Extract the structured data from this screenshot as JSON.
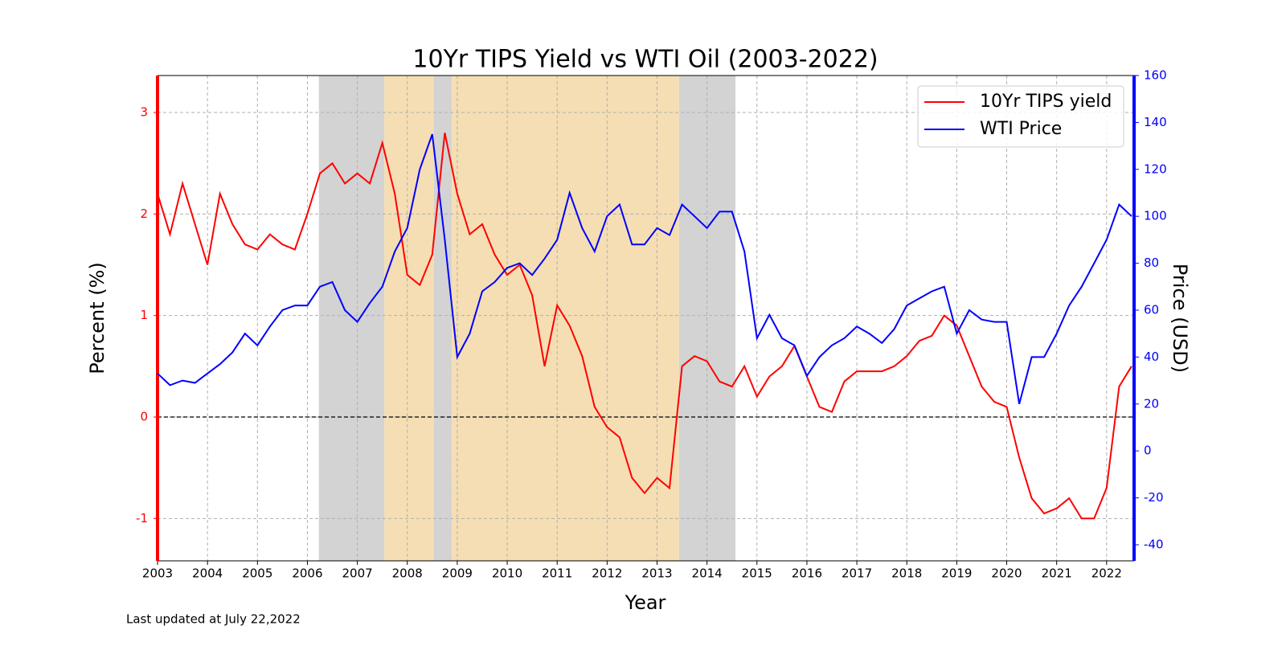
{
  "chart_data": {
    "type": "line",
    "title": "10Yr TIPS Yield vs WTI Oil (2003-2022)",
    "xlabel": "Year",
    "ylabel": "Percent (%)",
    "y2label": "Price (USD)",
    "footnote": "Last updated at July 22,2022",
    "x": [
      2003,
      2003.25,
      2003.5,
      2003.75,
      2004,
      2004.25,
      2004.5,
      2004.75,
      2005,
      2005.25,
      2005.5,
      2005.75,
      2006,
      2006.25,
      2006.5,
      2006.75,
      2007,
      2007.25,
      2007.5,
      2007.75,
      2008,
      2008.25,
      2008.5,
      2008.75,
      2009,
      2009.25,
      2009.5,
      2009.75,
      2010,
      2010.25,
      2010.5,
      2010.75,
      2011,
      2011.25,
      2011.5,
      2011.75,
      2012,
      2012.25,
      2012.5,
      2012.75,
      2013,
      2013.25,
      2013.5,
      2013.75,
      2014,
      2014.25,
      2014.5,
      2014.75,
      2015,
      2015.25,
      2015.5,
      2015.75,
      2016,
      2016.25,
      2016.5,
      2016.75,
      2017,
      2017.25,
      2017.5,
      2017.75,
      2018,
      2018.25,
      2018.5,
      2018.75,
      2019,
      2019.25,
      2019.5,
      2019.75,
      2020,
      2020.25,
      2020.5,
      2020.75,
      2021,
      2021.25,
      2021.5,
      2021.75,
      2022,
      2022.25,
      2022.5
    ],
    "series": [
      {
        "name": "10Yr TIPS yield",
        "color": "#ff0000",
        "axis": "y",
        "values": [
          2.2,
          1.8,
          2.3,
          1.9,
          1.5,
          2.2,
          1.9,
          1.7,
          1.65,
          1.8,
          1.7,
          1.65,
          2.0,
          2.4,
          2.5,
          2.3,
          2.4,
          2.3,
          2.7,
          2.2,
          1.4,
          1.3,
          1.6,
          2.8,
          2.2,
          1.8,
          1.9,
          1.6,
          1.4,
          1.5,
          1.2,
          0.5,
          1.1,
          0.9,
          0.6,
          0.1,
          -0.1,
          -0.2,
          -0.6,
          -0.75,
          -0.6,
          -0.7,
          0.5,
          0.6,
          0.55,
          0.35,
          0.3,
          0.5,
          0.2,
          0.4,
          0.5,
          0.7,
          0.4,
          0.1,
          0.05,
          0.35,
          0.45,
          0.45,
          0.45,
          0.5,
          0.6,
          0.75,
          0.8,
          1.0,
          0.9,
          0.6,
          0.3,
          0.15,
          0.1,
          -0.4,
          -0.8,
          -0.95,
          -0.9,
          -0.8,
          -1.0,
          -1.0,
          -0.7,
          0.3,
          0.5
        ]
      },
      {
        "name": "WTI Price",
        "color": "#0000ff",
        "axis": "y2",
        "values": [
          33,
          28,
          30,
          29,
          33,
          37,
          42,
          50,
          45,
          53,
          60,
          62,
          62,
          70,
          72,
          60,
          55,
          63,
          70,
          85,
          95,
          120,
          135,
          90,
          40,
          50,
          68,
          72,
          78,
          80,
          75,
          82,
          90,
          110,
          95,
          85,
          100,
          105,
          88,
          88,
          95,
          92,
          105,
          100,
          95,
          102,
          102,
          85,
          48,
          58,
          48,
          45,
          32,
          40,
          45,
          48,
          53,
          50,
          46,
          52,
          62,
          65,
          68,
          70,
          50,
          60,
          56,
          55,
          55,
          20,
          40,
          40,
          50,
          62,
          70,
          80,
          90,
          105,
          100
        ]
      }
    ],
    "xlim": [
      2003,
      2022.55
    ],
    "xticks": [
      2003,
      2004,
      2005,
      2006,
      2007,
      2008,
      2009,
      2010,
      2011,
      2012,
      2013,
      2014,
      2015,
      2016,
      2017,
      2018,
      2019,
      2020,
      2021,
      2022
    ],
    "ylim": [
      -1.417,
      3.364
    ],
    "yticks": [
      -1,
      0,
      1,
      2,
      3
    ],
    "y2lim": [
      -46.85,
      160
    ],
    "y2ticks": [
      -40,
      -20,
      0,
      20,
      40,
      60,
      80,
      100,
      120,
      140,
      160
    ],
    "hline": 0,
    "shaded_regions": [
      {
        "start": 2006.23,
        "end": 2007.54,
        "color": "#d3d3d3"
      },
      {
        "start": 2007.54,
        "end": 2008.53,
        "color": "#f5deb3"
      },
      {
        "start": 2008.53,
        "end": 2008.89,
        "color": "#d3d3d3"
      },
      {
        "start": 2008.89,
        "end": 2013.44,
        "color": "#f5deb3"
      },
      {
        "start": 2013.44,
        "end": 2014.57,
        "color": "#d3d3d3"
      }
    ],
    "grid": true,
    "legend": "upper right"
  }
}
